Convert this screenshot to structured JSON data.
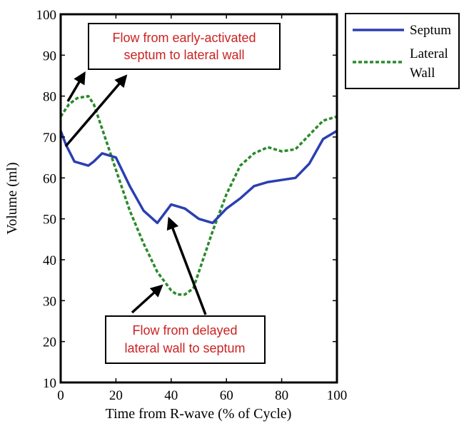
{
  "colors": {
    "septum": "#2b3fb0",
    "lateral_wall": "#2a8a2a",
    "annotation_text": "#cc2222",
    "arrow": "#000000"
  },
  "chart_data": {
    "type": "line",
    "xlabel": "Time from R-wave (% of Cycle)",
    "ylabel": "Volume (ml)",
    "xlim": [
      0,
      100
    ],
    "ylim": [
      10,
      100
    ],
    "xticks": [
      "0",
      "20",
      "40",
      "60",
      "80",
      "100"
    ],
    "yticks": [
      "10",
      "20",
      "30",
      "40",
      "50",
      "60",
      "70",
      "80",
      "90",
      "100"
    ],
    "legend_position": "outside-top-right",
    "grid": false,
    "series": [
      {
        "name": "Septum",
        "style": "solid",
        "x": [
          0,
          2,
          5,
          10,
          12,
          15,
          20,
          25,
          30,
          35,
          40,
          45,
          50,
          55,
          60,
          65,
          70,
          75,
          80,
          85,
          90,
          95,
          100
        ],
        "y": [
          71.5,
          68,
          64,
          63,
          64,
          66,
          65,
          58,
          52,
          49,
          53.5,
          52.5,
          50,
          49,
          52.5,
          55,
          58,
          59,
          59.5,
          60,
          63.5,
          69.5,
          71.5
        ]
      },
      {
        "name": "Lateral Wall",
        "legend_lines": [
          "Lateral",
          "Wall"
        ],
        "style": "dashed",
        "x": [
          0,
          3,
          6,
          10,
          12,
          15,
          20,
          25,
          30,
          35,
          40,
          42,
          45,
          48,
          50,
          55,
          60,
          65,
          70,
          75,
          80,
          85,
          90,
          95,
          100
        ],
        "y": [
          75,
          78,
          79.5,
          80,
          78,
          72,
          62,
          52,
          44,
          37,
          32.5,
          31.5,
          31.5,
          33,
          37,
          47,
          56,
          63,
          66,
          67.5,
          66.5,
          67,
          70.5,
          74,
          75
        ]
      }
    ],
    "annotations": [
      {
        "text_lines": [
          "Flow from early-activated",
          "septum to lateral wall"
        ]
      },
      {
        "text_lines": [
          "Flow from delayed",
          "lateral wall to septum"
        ]
      }
    ]
  }
}
